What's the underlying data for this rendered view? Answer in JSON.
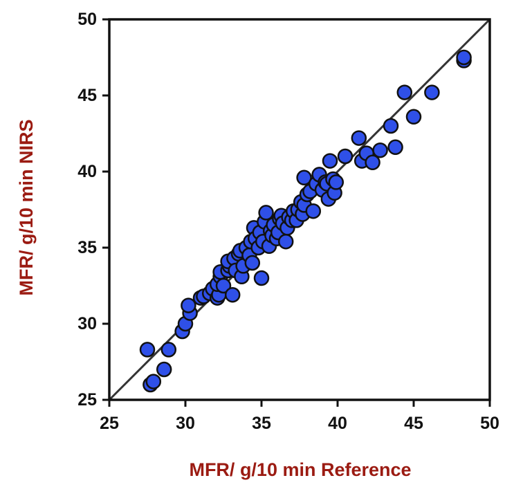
{
  "colors": {
    "axis_title": "#9b1b12",
    "marker_fill": "#2f50e8",
    "marker_stroke": "#111111",
    "axis": "#111111",
    "identity_line": "#333333"
  },
  "chart_data": {
    "type": "scatter",
    "title": "",
    "xlabel": "MFR/ g/10 min Reference",
    "ylabel": "MFR/ g/10 min NIRS",
    "xlim": [
      25,
      50
    ],
    "ylim": [
      25,
      50
    ],
    "xticks": [
      "25",
      "30",
      "35",
      "40",
      "45",
      "50"
    ],
    "yticks": [
      "25",
      "30",
      "35",
      "40",
      "45",
      "50"
    ],
    "grid": false,
    "legend": "none",
    "reference_line": {
      "type": "identity",
      "from": [
        25,
        25
      ],
      "to": [
        50,
        50
      ]
    },
    "series": [
      {
        "points": [
          [
            27.5,
            28.3
          ],
          [
            27.7,
            26.0
          ],
          [
            27.9,
            26.2
          ],
          [
            28.6,
            27.0
          ],
          [
            28.9,
            28.3
          ],
          [
            29.8,
            29.5
          ],
          [
            30.0,
            30.0
          ],
          [
            30.3,
            30.7
          ],
          [
            30.2,
            31.2
          ],
          [
            31.0,
            31.7
          ],
          [
            31.2,
            31.8
          ],
          [
            31.6,
            32.0
          ],
          [
            31.8,
            32.3
          ],
          [
            32.1,
            31.7
          ],
          [
            32.2,
            31.9
          ],
          [
            32.1,
            32.6
          ],
          [
            32.3,
            33.1
          ],
          [
            32.5,
            32.5
          ],
          [
            32.3,
            33.4
          ],
          [
            32.8,
            33.5
          ],
          [
            32.9,
            33.8
          ],
          [
            32.8,
            34.1
          ],
          [
            33.1,
            31.9
          ],
          [
            33.2,
            34.3
          ],
          [
            33.3,
            33.5
          ],
          [
            33.5,
            34.6
          ],
          [
            33.7,
            33.1
          ],
          [
            33.6,
            34.8
          ],
          [
            33.8,
            33.8
          ],
          [
            34.0,
            35.0
          ],
          [
            34.2,
            34.5
          ],
          [
            34.3,
            35.4
          ],
          [
            34.5,
            36.3
          ],
          [
            34.4,
            34.0
          ],
          [
            34.6,
            35.6
          ],
          [
            34.8,
            35.0
          ],
          [
            34.9,
            36.0
          ],
          [
            35.0,
            33.0
          ],
          [
            35.1,
            35.4
          ],
          [
            35.2,
            36.7
          ],
          [
            35.3,
            37.3
          ],
          [
            35.5,
            35.1
          ],
          [
            35.6,
            36.1
          ],
          [
            35.7,
            35.8
          ],
          [
            35.8,
            36.5
          ],
          [
            36.0,
            35.6
          ],
          [
            36.1,
            36.0
          ],
          [
            36.2,
            36.9
          ],
          [
            36.3,
            37.1
          ],
          [
            36.4,
            36.6
          ],
          [
            36.6,
            35.4
          ],
          [
            36.7,
            36.3
          ],
          [
            36.8,
            37.0
          ],
          [
            37.0,
            36.8
          ],
          [
            37.1,
            37.4
          ],
          [
            37.3,
            36.8
          ],
          [
            37.4,
            37.5
          ],
          [
            37.6,
            38.0
          ],
          [
            37.7,
            37.2
          ],
          [
            37.8,
            37.8
          ],
          [
            37.8,
            39.6
          ],
          [
            38.0,
            38.5
          ],
          [
            38.2,
            38.7
          ],
          [
            38.4,
            37.4
          ],
          [
            38.6,
            39.2
          ],
          [
            38.8,
            39.8
          ],
          [
            39.0,
            38.8
          ],
          [
            39.2,
            39.3
          ],
          [
            39.3,
            39.2
          ],
          [
            39.4,
            38.2
          ],
          [
            39.5,
            40.7
          ],
          [
            39.7,
            39.5
          ],
          [
            39.8,
            38.6
          ],
          [
            39.9,
            39.3
          ],
          [
            40.5,
            41.0
          ],
          [
            41.4,
            42.2
          ],
          [
            41.6,
            40.7
          ],
          [
            41.9,
            41.2
          ],
          [
            42.3,
            40.6
          ],
          [
            42.8,
            41.4
          ],
          [
            43.5,
            43.0
          ],
          [
            43.8,
            41.6
          ],
          [
            44.4,
            45.2
          ],
          [
            45.0,
            43.6
          ],
          [
            46.2,
            45.2
          ],
          [
            48.3,
            47.3
          ],
          [
            48.3,
            47.5
          ]
        ]
      }
    ]
  }
}
